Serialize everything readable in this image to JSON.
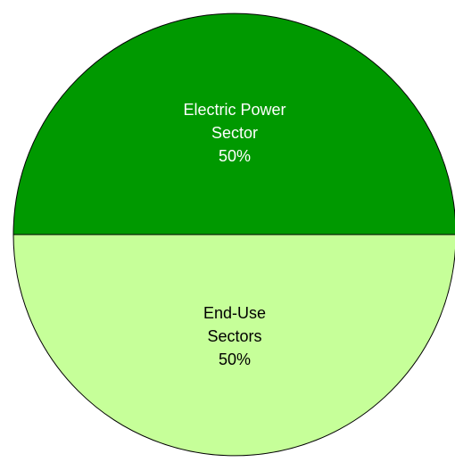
{
  "chart_data": {
    "type": "pie",
    "title": "",
    "slices": [
      {
        "label_lines": [
          "Electric Power",
          "Sector",
          "50%"
        ],
        "value": 50,
        "color": "#009900",
        "label_color": "#ffffff"
      },
      {
        "label_lines": [
          "End-Use",
          "Sectors",
          "50%"
        ],
        "value": 50,
        "color": "#c6ff99",
        "label_color": "#000000"
      }
    ]
  }
}
